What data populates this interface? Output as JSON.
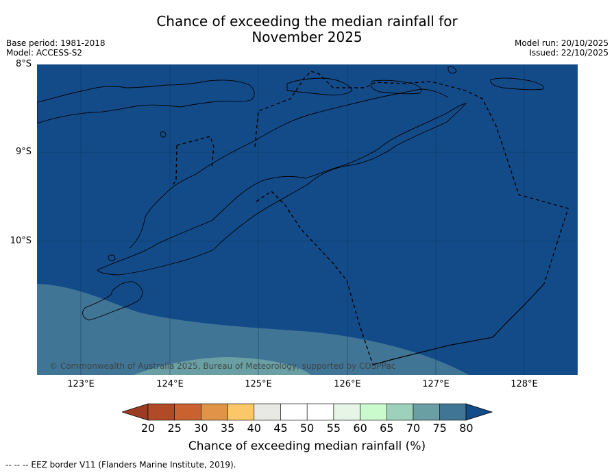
{
  "title_line1": "Chance of exceeding the median rainfall for",
  "title_line2": "November 2025",
  "base_period": "Base period: 1981-2018",
  "model": "Model: ACCESS-S2",
  "model_run": "Model run: 20/10/2025",
  "issued": "Issued: 22/10/2025",
  "lat_labels": [
    "8°S",
    "9°S",
    "10°S"
  ],
  "lon_labels": [
    "123°E",
    "124°E",
    "125°E",
    "126°E",
    "127°E",
    "128°E"
  ],
  "copyright": "© Commonwealth of Australia 2025, Bureau of Meteorology, supported by COSPPac",
  "colorbar": {
    "label": "Chance of exceeding median rainfall (%)",
    "ticks": [
      "20",
      "25",
      "30",
      "35",
      "40",
      "45",
      "50",
      "55",
      "60",
      "65",
      "70",
      "75",
      "80"
    ],
    "colors": [
      "#b04b27",
      "#c9622f",
      "#e09448",
      "#fbc767",
      "#e8e8e5",
      "#ffffff",
      "#ffffff",
      "#e6f5e6",
      "#c9fbcc",
      "#9dd1bb",
      "#6a9fa3",
      "#417595"
    ],
    "under_color": "#9c3a22",
    "over_color": "#144b89"
  },
  "map_colors": {
    "ocean": "#134b88",
    "band_70_75": "#417595",
    "band_65_70": "#6a9fa3"
  },
  "footer": "-- -- -- EEZ border V11 (Flanders Marine Institute, 2019)."
}
